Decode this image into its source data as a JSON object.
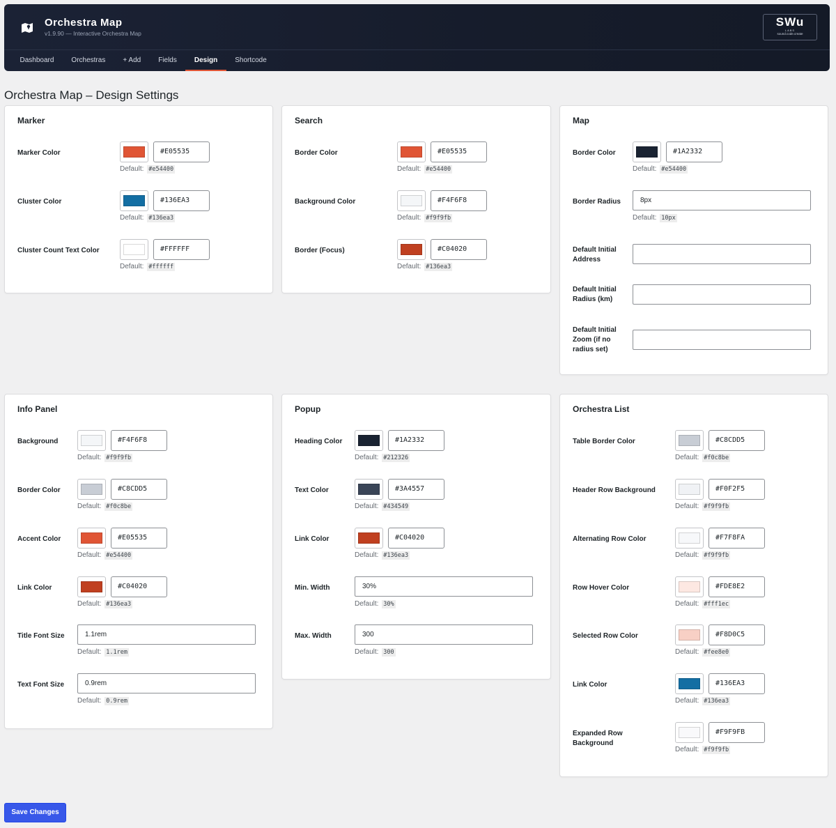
{
  "app": {
    "title": "Orchestra Map",
    "subtitle": "v1.9.90 — Interactive Orchestra Map",
    "brand_main": "SWu",
    "brand_small": "LABS",
    "brand_tag": "sound.code.create"
  },
  "nav": {
    "items": [
      "Dashboard",
      "Orchestras",
      "+ Add",
      "Fields",
      "Design",
      "Shortcode"
    ],
    "active": "Design"
  },
  "page_title": "Orchestra Map – Design Settings",
  "default_label": "Default:",
  "save_label": "Save Changes",
  "cards": {
    "marker": {
      "title": "Marker",
      "rows": [
        {
          "label": "Marker Color",
          "value": "#E05535",
          "default": "#e54400",
          "swatch": "#E05535"
        },
        {
          "label": "Cluster Color",
          "value": "#136EA3",
          "default": "#136ea3",
          "swatch": "#136EA3"
        },
        {
          "label": "Cluster Count Text Color",
          "value": "#FFFFFF",
          "default": "#ffffff",
          "swatch": "#FFFFFF"
        }
      ]
    },
    "search": {
      "title": "Search",
      "rows": [
        {
          "label": "Border Color",
          "value": "#E05535",
          "default": "#e54400",
          "swatch": "#E05535"
        },
        {
          "label": "Background Color",
          "value": "#F4F6F8",
          "default": "#f9f9fb",
          "swatch": "#F4F6F8"
        },
        {
          "label": "Border (Focus)",
          "value": "#C04020",
          "default": "#136ea3",
          "swatch": "#C04020"
        }
      ]
    },
    "map": {
      "title": "Map",
      "border_color": {
        "label": "Border Color",
        "value": "#1A2332",
        "default": "#e54400",
        "swatch": "#1A2332"
      },
      "border_radius": {
        "label": "Border Radius",
        "value": "8px",
        "default": "10px"
      },
      "initial_address": {
        "label": "Default Initial Address",
        "value": ""
      },
      "initial_radius": {
        "label": "Default Initial Radius (km)",
        "value": ""
      },
      "initial_zoom": {
        "label": "Default Initial Zoom (if no radius set)",
        "value": ""
      }
    },
    "info_panel": {
      "title": "Info Panel",
      "rows": [
        {
          "label": "Background",
          "value": "#F4F6F8",
          "default": "#f9f9fb",
          "swatch": "#F4F6F8"
        },
        {
          "label": "Border Color",
          "value": "#C8CDD5",
          "default": "#f0c8be",
          "swatch": "#C8CDD5"
        },
        {
          "label": "Accent Color",
          "value": "#E05535",
          "default": "#e54400",
          "swatch": "#E05535"
        },
        {
          "label": "Link Color",
          "value": "#C04020",
          "default": "#136ea3",
          "swatch": "#C04020"
        }
      ],
      "title_font_size": {
        "label": "Title Font Size",
        "value": "1.1rem",
        "default": "1.1rem"
      },
      "text_font_size": {
        "label": "Text Font Size",
        "value": "0.9rem",
        "default": "0.9rem"
      }
    },
    "popup": {
      "title": "Popup",
      "rows": [
        {
          "label": "Heading Color",
          "value": "#1A2332",
          "default": "#212326",
          "swatch": "#1A2332"
        },
        {
          "label": "Text Color",
          "value": "#3A4557",
          "default": "#434549",
          "swatch": "#3A4557"
        },
        {
          "label": "Link Color",
          "value": "#C04020",
          "default": "#136ea3",
          "swatch": "#C04020"
        }
      ],
      "min_width": {
        "label": "Min. Width",
        "value": "30%",
        "default": "30%"
      },
      "max_width": {
        "label": "Max. Width",
        "value": "300",
        "default": "300"
      }
    },
    "orchestra_list": {
      "title": "Orchestra List",
      "rows": [
        {
          "label": "Table Border Color",
          "value": "#C8CDD5",
          "default": "#f0c8be",
          "swatch": "#C8CDD5"
        },
        {
          "label": "Header Row Background",
          "value": "#F0F2F5",
          "default": "#f9f9fb",
          "swatch": "#F0F2F5"
        },
        {
          "label": "Alternating Row Color",
          "value": "#F7F8FA",
          "default": "#f9f9fb",
          "swatch": "#F7F8FA"
        },
        {
          "label": "Row Hover Color",
          "value": "#FDE8E2",
          "default": "#fff1ec",
          "swatch": "#FDE8E2"
        },
        {
          "label": "Selected Row Color",
          "value": "#F8D0C5",
          "default": "#fee8e0",
          "swatch": "#F8D0C5"
        },
        {
          "label": "Link Color",
          "value": "#136EA3",
          "default": "#136ea3",
          "swatch": "#136EA3"
        },
        {
          "label": "Expanded Row Background",
          "value": "#F9F9FB",
          "default": "#f9f9fb",
          "swatch": "#F9F9FB"
        }
      ]
    }
  }
}
